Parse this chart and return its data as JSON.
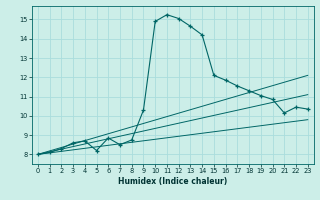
{
  "xlabel": "Humidex (Indice chaleur)",
  "bg_color": "#cceee8",
  "line_color": "#006666",
  "grid_color": "#aadddd",
  "xlim": [
    -0.5,
    23.5
  ],
  "ylim": [
    7.5,
    15.7
  ],
  "xticks": [
    0,
    1,
    2,
    3,
    4,
    5,
    6,
    7,
    8,
    9,
    10,
    11,
    12,
    13,
    14,
    15,
    16,
    17,
    18,
    19,
    20,
    21,
    22,
    23
  ],
  "yticks": [
    8,
    9,
    10,
    11,
    12,
    13,
    14,
    15
  ],
  "main_x": [
    0,
    1,
    2,
    3,
    4,
    5,
    6,
    7,
    8,
    9,
    10,
    11,
    12,
    13,
    14,
    15,
    16,
    17,
    18,
    19,
    20,
    21,
    22,
    23
  ],
  "main_y": [
    8.0,
    8.1,
    8.3,
    8.6,
    8.7,
    8.2,
    8.85,
    8.5,
    8.75,
    10.3,
    14.9,
    15.25,
    15.05,
    14.65,
    14.2,
    12.1,
    11.85,
    11.55,
    11.3,
    11.05,
    10.85,
    10.15,
    10.45,
    10.35
  ],
  "line1_x": [
    0,
    23
  ],
  "line1_y": [
    8.0,
    9.8
  ],
  "line2_x": [
    0,
    23
  ],
  "line2_y": [
    8.0,
    11.1
  ],
  "line3_x": [
    0,
    23
  ],
  "line3_y": [
    8.0,
    12.1
  ]
}
